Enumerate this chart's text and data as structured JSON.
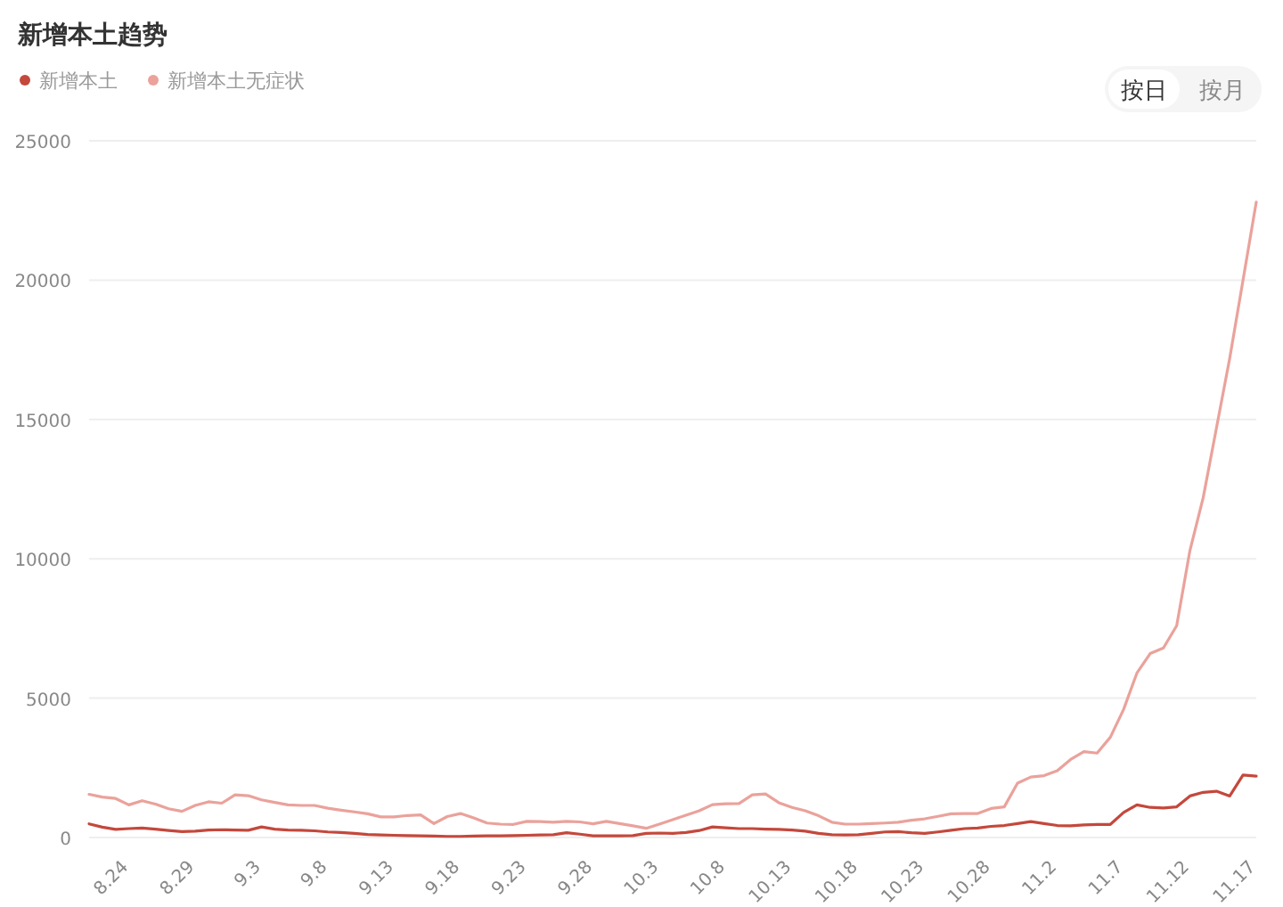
{
  "chart_data": {
    "type": "line",
    "title": "新增本土趋势",
    "categories": [
      null,
      null,
      null,
      "8.24",
      null,
      null,
      null,
      null,
      "8.29",
      null,
      null,
      null,
      null,
      "9.3",
      null,
      null,
      null,
      null,
      "9.8",
      null,
      null,
      null,
      null,
      "9.13",
      null,
      null,
      null,
      null,
      "9.18",
      null,
      null,
      null,
      null,
      "9.23",
      null,
      null,
      null,
      null,
      "9.28",
      null,
      null,
      null,
      null,
      "10.3",
      null,
      null,
      null,
      null,
      "10.8",
      null,
      null,
      null,
      null,
      "10.13",
      null,
      null,
      null,
      null,
      "10.18",
      null,
      null,
      null,
      null,
      "10.23",
      null,
      null,
      null,
      null,
      "10.28",
      null,
      null,
      null,
      null,
      "11.2",
      null,
      null,
      null,
      null,
      "11.7",
      null,
      null,
      null,
      null,
      "11.12",
      null,
      null,
      null,
      null,
      "11.17"
    ],
    "series": [
      {
        "name": "新增本土",
        "color": "#c4483c",
        "values": [
          490,
          370,
          290,
          320,
          340,
          300,
          250,
          210,
          230,
          270,
          280,
          270,
          260,
          380,
          300,
          270,
          260,
          240,
          200,
          180,
          150,
          110,
          90,
          80,
          70,
          60,
          50,
          40,
          40,
          50,
          60,
          60,
          70,
          80,
          90,
          100,
          170,
          120,
          60,
          60,
          60,
          70,
          150,
          160,
          150,
          180,
          250,
          380,
          350,
          320,
          320,
          300,
          290,
          270,
          230,
          150,
          100,
          90,
          100,
          150,
          200,
          210,
          170,
          150,
          200,
          260,
          320,
          340,
          400,
          430,
          500,
          570,
          500,
          430,
          420,
          450,
          470,
          470,
          900,
          1170,
          1080,
          1060,
          1100,
          1490,
          1620,
          1660,
          1490,
          2240,
          2200
        ]
      },
      {
        "name": "新增本土无症状",
        "color": "#eaa29b",
        "values": [
          1550,
          1450,
          1400,
          1170,
          1320,
          1200,
          1030,
          940,
          1150,
          1280,
          1230,
          1530,
          1500,
          1350,
          1260,
          1170,
          1150,
          1150,
          1050,
          980,
          920,
          850,
          740,
          740,
          790,
          810,
          500,
          750,
          860,
          700,
          520,
          480,
          470,
          580,
          570,
          550,
          580,
          560,
          490,
          580,
          500,
          420,
          330,
          480,
          640,
          800,
          960,
          1180,
          1210,
          1220,
          1530,
          1560,
          1250,
          1080,
          960,
          780,
          550,
          480,
          480,
          500,
          520,
          550,
          620,
          670,
          760,
          850,
          860,
          860,
          1040,
          1100,
          1950,
          2170,
          2220,
          2400,
          2800,
          3080,
          3030,
          3600,
          4600,
          5900,
          6600,
          6800,
          7600,
          10300,
          12200,
          14700,
          17200,
          20000,
          22800
        ]
      }
    ],
    "ylim": [
      0,
      25000
    ],
    "yticks": [
      0,
      5000,
      10000,
      15000,
      20000,
      25000
    ],
    "grid": "y",
    "legend": "top left",
    "annotations": [
      "按日",
      "按月"
    ]
  }
}
